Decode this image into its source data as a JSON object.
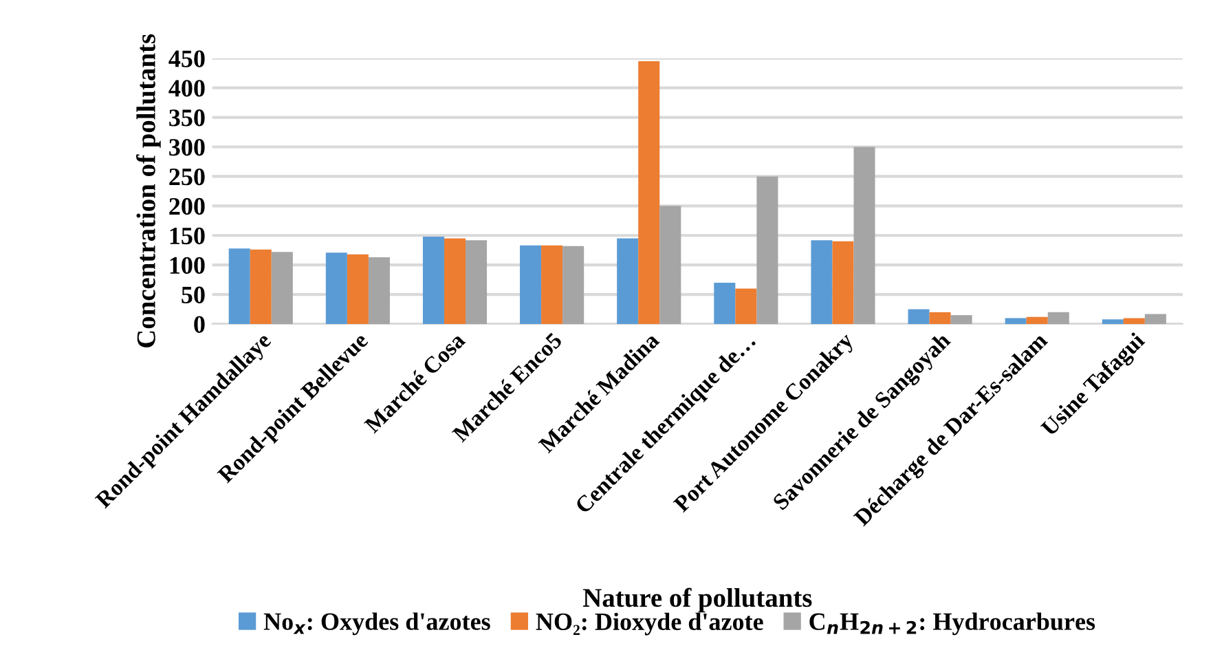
{
  "chart_data": {
    "type": "bar",
    "xlabel": "Nature of pollutants",
    "ylabel": "Concentration of pollutants",
    "categories": [
      "Rond-point Hamdallaye",
      "Rond-point Bellevue",
      "Marché Cosa",
      "Marché Enco5",
      "Marché Madina",
      "Centrale thermique de…",
      "Port Autonome Conakry",
      "Savonnerie de Sangoyah",
      "Décharge de Dar-Es-salam",
      "Usine Tafagui"
    ],
    "series": [
      {
        "name": "No$_{x}$: Oxydes d'azotes",
        "color": "#5b9bd5",
        "values": [
          128,
          121,
          148,
          133,
          145,
          70,
          142,
          25,
          10,
          8
        ]
      },
      {
        "name": "NO₂: Dioxyde d'azote",
        "color": "#ed7d31",
        "values": [
          126,
          118,
          145,
          133,
          445,
          60,
          140,
          20,
          12,
          10
        ]
      },
      {
        "name": "C$_{n}$H$_{2n+2}$: Hydrocarbures",
        "color": "#a5a5a5",
        "values": [
          122,
          113,
          142,
          132,
          200,
          250,
          300,
          15,
          20,
          17
        ]
      }
    ],
    "ylim": [
      0,
      450
    ],
    "yticks": [
      0,
      50,
      100,
      150,
      200,
      250,
      300,
      350,
      400,
      450
    ],
    "grid": "y",
    "legend": "bottom"
  }
}
